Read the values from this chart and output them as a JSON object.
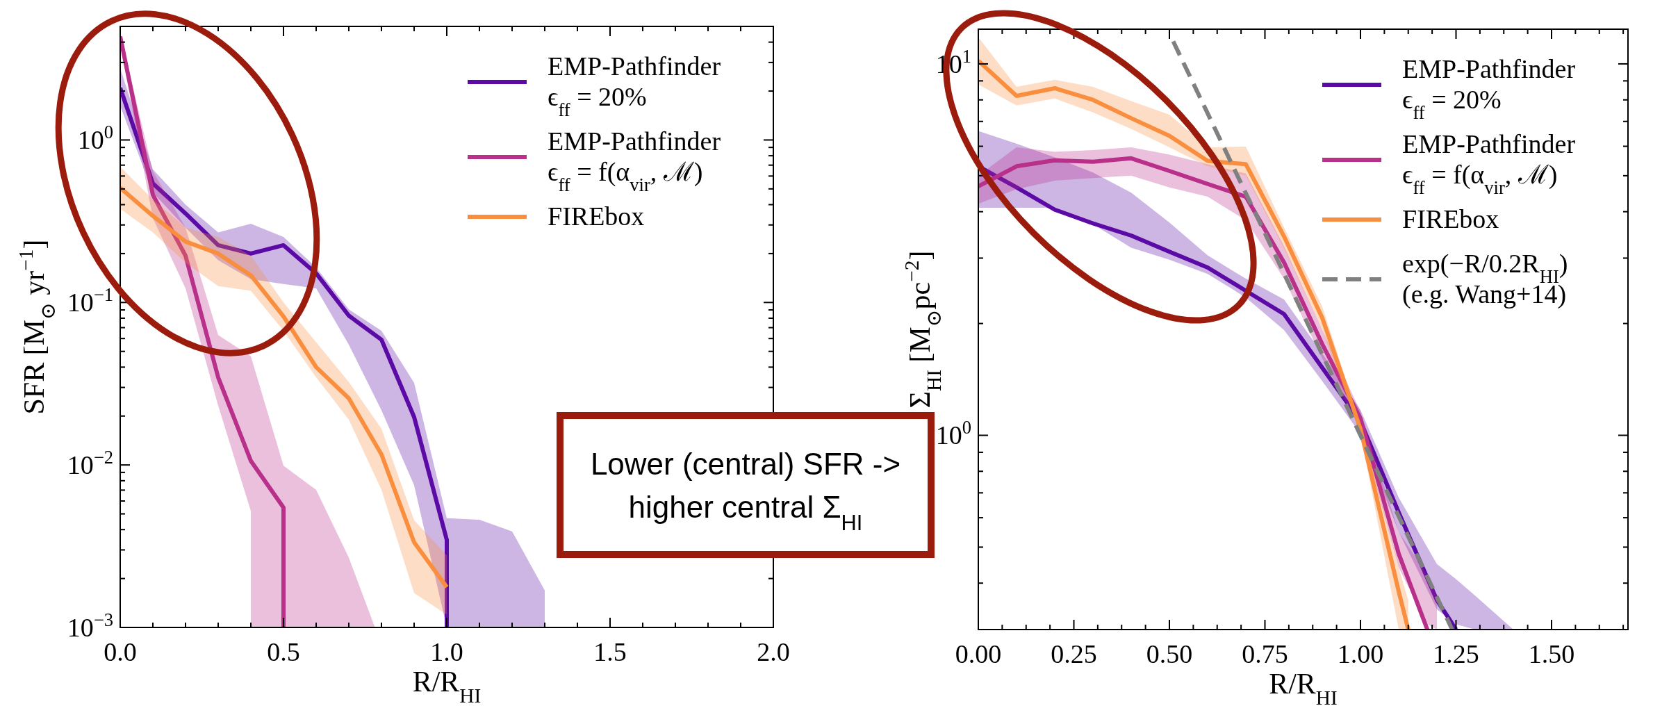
{
  "chart_data": [
    {
      "type": "line",
      "log": "y",
      "xlabel": "R/R$_{HI}$",
      "ylabel": "SFR [M$_{⊙}$ yr$^{−1}$]",
      "legend": "top right",
      "xlim": [
        0,
        2
      ],
      "ylim": [
        0.001,
        5
      ],
      "xticks": [
        {
          "value": 0,
          "label": "0.0"
        },
        {
          "value": 0.5,
          "label": "0.5"
        },
        {
          "value": 1,
          "label": "1.0"
        },
        {
          "value": 1.5,
          "label": "1.5"
        },
        {
          "value": 2,
          "label": "2.0"
        },
        {
          "value": 0.1,
          "label": null
        },
        {
          "value": 0.2,
          "label": null
        },
        {
          "value": 0.3,
          "label": null
        },
        {
          "value": 0.4,
          "label": null
        },
        {
          "value": 0.6,
          "label": null
        },
        {
          "value": 0.7,
          "label": null
        },
        {
          "value": 0.8,
          "label": null
        },
        {
          "value": 0.9,
          "label": null
        },
        {
          "value": 1.1,
          "label": null
        },
        {
          "value": 1.2,
          "label": null
        },
        {
          "value": 1.3,
          "label": null
        },
        {
          "value": 1.4,
          "label": null
        },
        {
          "value": 1.6,
          "label": null
        },
        {
          "value": 1.7,
          "label": null
        },
        {
          "value": 1.8,
          "label": null
        },
        {
          "value": 1.9,
          "label": null
        }
      ],
      "yticks": [
        {
          "value": 0.001,
          "label": "10$^{−3}$"
        },
        {
          "value": 0.01,
          "label": "10$^{−2}$"
        },
        {
          "value": 0.1,
          "label": "10$^{−1}$"
        },
        {
          "value": 1,
          "label": "10$^{0}$"
        },
        {
          "value": 0.002,
          "label": null
        },
        {
          "value": 0.003,
          "label": null
        },
        {
          "value": 0.004,
          "label": null
        },
        {
          "value": 0.005,
          "label": null
        },
        {
          "value": 0.006,
          "label": null
        },
        {
          "value": 0.007,
          "label": null
        },
        {
          "value": 0.008,
          "label": null
        },
        {
          "value": 0.009,
          "label": null
        },
        {
          "value": 0.02,
          "label": null
        },
        {
          "value": 0.03,
          "label": null
        },
        {
          "value": 0.04,
          "label": null
        },
        {
          "value": 0.05,
          "label": null
        },
        {
          "value": 0.06,
          "label": null
        },
        {
          "value": 0.07,
          "label": null
        },
        {
          "value": 0.08,
          "label": null
        },
        {
          "value": 0.09,
          "label": null
        },
        {
          "value": 0.2,
          "label": null
        },
        {
          "value": 0.3,
          "label": null
        },
        {
          "value": 0.4,
          "label": null
        },
        {
          "value": 0.5,
          "label": null
        },
        {
          "value": 0.6,
          "label": null
        },
        {
          "value": 0.7,
          "label": null
        },
        {
          "value": 0.8,
          "label": null
        },
        {
          "value": 0.9,
          "label": null
        },
        {
          "value": 2,
          "label": null
        },
        {
          "value": 3,
          "label": null
        },
        {
          "value": 4,
          "label": null
        }
      ],
      "annotations": [
        "Lower (central) SFR -> higher central Σ$_{HI}$"
      ],
      "series": [
        {
          "name": "EMP-Pathfinder\nϵ$_{ff}$ = 20%",
          "color": "#5b0aa6",
          "line_style": "solid",
          "x": [
            0,
            0.1,
            0.2,
            0.3,
            0.4,
            0.5,
            0.6,
            0.7,
            0.8,
            0.9,
            1.0,
            1.0,
            1.1,
            1.2,
            1.3
          ],
          "values": [
            2.09,
            0.54,
            0.353,
            0.225,
            0.2,
            0.225,
            0.151,
            0.083,
            0.059,
            0.0197,
            0.00346,
            0.001,
            null,
            null,
            null
          ],
          "upper": [
            2.76,
            0.66,
            0.4,
            0.27,
            0.305,
            0.253,
            0.164,
            0.0906,
            0.067,
            0.032,
            0.0047,
            0.0047,
            0.0046,
            0.0039,
            0.00169
          ],
          "lower": [
            1.62,
            0.475,
            0.289,
            0.182,
            0.139,
            0.13,
            0.122,
            0.055,
            0.0217,
            0.0075,
            0.001,
            0.001,
            0.001,
            0.001,
            0.001
          ]
        },
        {
          "name": "EMP-Pathfinder\nϵ$_{ff}$ = f(α$_{vir}$, ℳ)",
          "color": "#b8308a",
          "line_style": "solid",
          "x": [
            0,
            0.1,
            0.2,
            0.3,
            0.4,
            0.4,
            0.5,
            0.5,
            0.6,
            0.7,
            0.78
          ],
          "values": [
            4.33,
            0.46,
            0.194,
            0.0346,
            0.0106,
            0.0106,
            0.00547,
            0.001,
            null,
            null,
            null
          ],
          "upper": [
            4.54,
            0.64,
            0.289,
            0.063,
            0.0467,
            0.0467,
            0.0099,
            0.0099,
            0.00703,
            0.00269,
            0.001
          ],
          "lower": [
            3.85,
            0.33,
            0.122,
            0.0232,
            0.0052,
            0.001,
            0.001,
            0.001,
            0.001,
            0.001,
            0.001
          ]
        },
        {
          "name": "FIREbox",
          "color": "#f98e3e",
          "line_style": "solid",
          "x": [
            0,
            0.1,
            0.2,
            0.3,
            0.4,
            0.5,
            0.6,
            0.7,
            0.8,
            0.9,
            1.0
          ],
          "values": [
            0.508,
            0.341,
            0.237,
            0.2,
            0.147,
            0.082,
            0.04,
            0.0257,
            0.0116,
            0.00334,
            0.00177
          ],
          "upper": [
            0.685,
            0.43,
            0.289,
            0.253,
            0.194,
            0.1,
            0.0569,
            0.0324,
            0.0167,
            0.00457,
            0.00278
          ],
          "lower": [
            0.377,
            0.27,
            0.176,
            0.126,
            0.118,
            0.067,
            0.0346,
            0.019,
            0.00703,
            0.00163,
            0.0012
          ]
        }
      ]
    },
    {
      "type": "line",
      "log": "y",
      "xlabel": "R/R$_{HI}$",
      "ylabel": "Σ$_{HI}$ [M$_{⊙}$pc$^{−2}$]",
      "legend": "top right",
      "xlim": [
        0,
        1.7
      ],
      "ylim": [
        0.3,
        12.4
      ],
      "xticks": [
        {
          "value": 0,
          "label": "0.00"
        },
        {
          "value": 0.25,
          "label": "0.25"
        },
        {
          "value": 0.5,
          "label": "0.50"
        },
        {
          "value": 0.75,
          "label": "0.75"
        },
        {
          "value": 1,
          "label": "1.00"
        },
        {
          "value": 1.25,
          "label": "1.25"
        },
        {
          "value": 1.5,
          "label": "1.50"
        },
        {
          "value": 0.0625,
          "label": null
        },
        {
          "value": 0.125,
          "label": null
        },
        {
          "value": 0.1875,
          "label": null
        },
        {
          "value": 0.3125,
          "label": null
        },
        {
          "value": 0.375,
          "label": null
        },
        {
          "value": 0.4375,
          "label": null
        },
        {
          "value": 0.5625,
          "label": null
        },
        {
          "value": 0.625,
          "label": null
        },
        {
          "value": 0.6875,
          "label": null
        },
        {
          "value": 0.8125,
          "label": null
        },
        {
          "value": 0.875,
          "label": null
        },
        {
          "value": 0.9375,
          "label": null
        },
        {
          "value": 1.0625,
          "label": null
        },
        {
          "value": 1.125,
          "label": null
        },
        {
          "value": 1.1875,
          "label": null
        },
        {
          "value": 1.3125,
          "label": null
        },
        {
          "value": 1.375,
          "label": null
        },
        {
          "value": 1.4375,
          "label": null
        },
        {
          "value": 1.5625,
          "label": null
        },
        {
          "value": 1.625,
          "label": null
        },
        {
          "value": 1.6875,
          "label": null
        }
      ],
      "yticks": [
        {
          "value": 10,
          "label": "10$^{1}$"
        },
        {
          "value": 1,
          "label": "10$^{0}$"
        },
        {
          "value": 0.3,
          "label": null
        },
        {
          "value": 0.4,
          "label": null
        },
        {
          "value": 0.5,
          "label": null
        },
        {
          "value": 0.6,
          "label": null
        },
        {
          "value": 0.7,
          "label": null
        },
        {
          "value": 0.8,
          "label": null
        },
        {
          "value": 0.9,
          "label": null
        },
        {
          "value": 2,
          "label": null
        },
        {
          "value": 3,
          "label": null
        },
        {
          "value": 4,
          "label": null
        },
        {
          "value": 5,
          "label": null
        },
        {
          "value": 6,
          "label": null
        },
        {
          "value": 7,
          "label": null
        },
        {
          "value": 8,
          "label": null
        },
        {
          "value": 9,
          "label": null
        }
      ],
      "series": [
        {
          "name": "EMP-Pathfinder\nϵ$_{ff}$ = 20%",
          "color": "#5b0aa6",
          "line_style": "solid",
          "x": [
            0,
            0.1,
            0.2,
            0.3,
            0.4,
            0.5,
            0.6,
            0.7,
            0.8,
            0.9,
            1.0,
            1.1,
            1.2,
            1.25,
            1.3,
            1.4
          ],
          "values": [
            5.3,
            4.65,
            4.05,
            3.72,
            3.45,
            3.12,
            2.83,
            2.45,
            2.12,
            1.52,
            1.09,
            0.62,
            0.36,
            0.3,
            null,
            null
          ],
          "upper": [
            6.6,
            6.1,
            5.6,
            5.1,
            4.5,
            3.74,
            3.05,
            2.64,
            2.32,
            1.66,
            1.17,
            0.68,
            0.45,
            0.41,
            0.37,
            0.3
          ],
          "lower": [
            4.1,
            4.1,
            4.1,
            3.7,
            3.2,
            2.97,
            2.72,
            2.35,
            1.92,
            1.4,
            1.01,
            0.55,
            0.34,
            0.31,
            0.3,
            0.3
          ]
        },
        {
          "name": "EMP-Pathfinder\nϵ$_{ff}$ = f(α$_{vir}$, ℳ)",
          "color": "#b8308a",
          "line_style": "solid",
          "x": [
            0,
            0.1,
            0.2,
            0.3,
            0.4,
            0.5,
            0.6,
            0.7,
            0.8,
            0.9,
            1.0,
            1.1,
            1.175,
            1.2
          ],
          "values": [
            4.68,
            5.3,
            5.5,
            5.45,
            5.57,
            5.15,
            4.75,
            4.39,
            2.92,
            1.76,
            1.11,
            0.48,
            0.3,
            null
          ],
          "upper": [
            5.0,
            5.96,
            5.8,
            5.86,
            5.96,
            5.7,
            5.37,
            5.07,
            3.23,
            1.92,
            1.16,
            0.55,
            0.42,
            0.37
          ],
          "lower": [
            4.2,
            4.6,
            4.85,
            4.93,
            5.0,
            4.65,
            4.39,
            3.79,
            2.64,
            1.61,
            1.04,
            0.44,
            0.31,
            0.3
          ]
        },
        {
          "name": "FIREbox",
          "color": "#f98e3e",
          "line_style": "solid",
          "x": [
            0,
            0.1,
            0.2,
            0.3,
            0.4,
            0.5,
            0.6,
            0.7,
            0.8,
            0.9,
            1.0,
            1.1,
            1.125
          ],
          "values": [
            10.2,
            8.2,
            8.6,
            8.0,
            7.14,
            6.4,
            5.48,
            5.37,
            3.43,
            2.07,
            1.04,
            0.38,
            0.3
          ],
          "upper": [
            11.8,
            8.67,
            9.06,
            8.67,
            7.94,
            7.3,
            5.96,
            5.99,
            3.63,
            2.22,
            1.07,
            0.44,
            0.36
          ],
          "lower": [
            8.8,
            7.73,
            8.07,
            7.4,
            6.68,
            5.96,
            5.3,
            5.0,
            3.19,
            1.92,
            1.01,
            0.3,
            0.3
          ]
        },
        {
          "type": "line",
          "name": "exp(−R/0.2R$_{HI}$)\n(e.g. Wang+14)",
          "color": "#808080",
          "line_style": "dashed",
          "x": [
            0.51,
            0.75,
            1.0,
            1.24
          ],
          "values": [
            11.5,
            3.5,
            1.0,
            0.3
          ]
        }
      ]
    }
  ]
}
